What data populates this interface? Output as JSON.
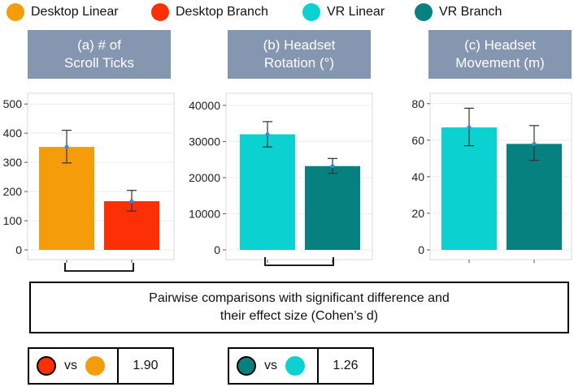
{
  "legend": [
    {
      "label": "Desktop Linear",
      "color": "#f59c0b"
    },
    {
      "label": "Desktop Branch",
      "color": "#fd2f05"
    },
    {
      "label": "VR Linear",
      "color": "#0cd1d1"
    },
    {
      "label": "VR Branch",
      "color": "#068180"
    }
  ],
  "panels": [
    {
      "title_line1": "(a) # of",
      "title_line2": "Scroll Ticks"
    },
    {
      "title_line1": "(b) Headset",
      "title_line2": "Rotation (°)"
    },
    {
      "title_line1": "(c) Headset",
      "title_line2": "Movement (m)"
    }
  ],
  "chart_data": [
    {
      "type": "bar",
      "title": "(a) # of Scroll Ticks",
      "categories": [
        "Desktop Linear",
        "Desktop Branch"
      ],
      "values": [
        353,
        167
      ],
      "error_low": [
        298,
        133
      ],
      "error_high": [
        410,
        204
      ],
      "colors": [
        "#f59c0b",
        "#fd2f05"
      ],
      "ylim": [
        0,
        520
      ],
      "yticks": [
        0,
        100,
        200,
        300,
        400,
        500
      ],
      "significant_pair": true
    },
    {
      "type": "bar",
      "title": "(b) Headset Rotation (°)",
      "categories": [
        "VR Linear",
        "VR Branch"
      ],
      "values": [
        32000,
        23200
      ],
      "error_low": [
        28500,
        21200
      ],
      "error_high": [
        35500,
        25300
      ],
      "colors": [
        "#0cd1d1",
        "#068180"
      ],
      "ylim": [
        0,
        42000
      ],
      "yticks": [
        0,
        10000,
        20000,
        30000,
        40000
      ],
      "significant_pair": true
    },
    {
      "type": "bar",
      "title": "(c) Headset Movement (m)",
      "categories": [
        "VR Linear",
        "VR Branch"
      ],
      "values": [
        67,
        58
      ],
      "error_low": [
        57,
        49
      ],
      "error_high": [
        77.5,
        68
      ],
      "colors": [
        "#0cd1d1",
        "#068180"
      ],
      "ylim": [
        0,
        83
      ],
      "yticks": [
        0,
        20,
        40,
        60,
        80
      ],
      "significant_pair": false
    }
  ],
  "pairwise": {
    "line1": "Pairwise comparisons with significant difference and",
    "line2": "their effect size (Cohen’s d)"
  },
  "comparisons": [
    {
      "left_color": "#fd2f05",
      "right_color": "#f59c0b",
      "vs": "vs",
      "value": "1.90"
    },
    {
      "left_color": "#068180",
      "right_color": "#0cd1d1",
      "vs": "vs",
      "value": "1.26"
    }
  ]
}
